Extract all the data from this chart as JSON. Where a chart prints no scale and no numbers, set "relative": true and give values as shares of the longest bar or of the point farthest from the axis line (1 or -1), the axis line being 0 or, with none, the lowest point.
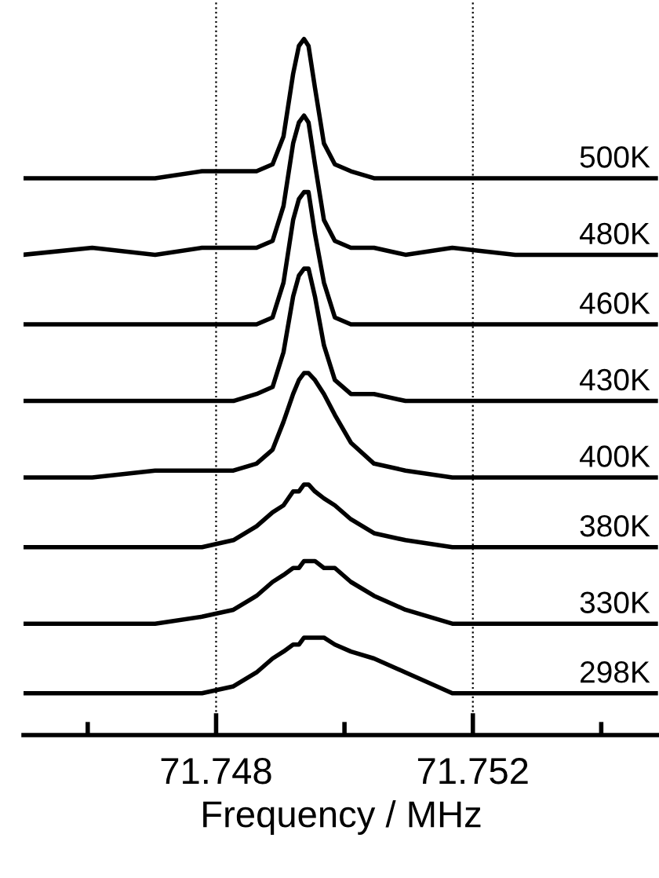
{
  "chart_data": {
    "type": "line",
    "relative": true,
    "xlabel": "Frequency / MHz",
    "x": [
      71.745,
      71.74607,
      71.74705,
      71.74778,
      71.74827,
      71.74863,
      71.74888,
      71.74905,
      71.7492,
      71.74929,
      71.74937,
      71.74944,
      71.74954,
      71.74968,
      71.74985,
      71.7501,
      71.75046,
      71.75095,
      71.75168,
      71.75266,
      71.75388,
      71.75485
    ],
    "xlim": [
      71.745,
      71.7549
    ],
    "xticks": [
      {
        "value": 71.746,
        "label": null
      },
      71.748,
      {
        "value": 71.75,
        "label": null
      },
      71.752,
      {
        "value": 71.754,
        "label": null
      }
    ],
    "tick_labels": "x",
    "grid": false,
    "legend": false,
    "marker": "none",
    "line_style": "solid",
    "ref_lines": [
      {
        "axis": "x",
        "value": 71.748,
        "color": "#000000",
        "line_style": "dotted"
      },
      {
        "axis": "x",
        "value": 71.752,
        "color": "#000000",
        "line_style": "dotted"
      }
    ],
    "series": [
      {
        "name": "500K",
        "color": "#000000",
        "values": [
          0.8,
          0.8,
          0.8,
          0.81,
          0.81,
          0.81,
          0.82,
          0.86,
          0.95,
          0.99,
          1.0,
          0.99,
          0.93,
          0.85,
          0.82,
          0.81,
          0.8,
          0.8,
          0.8,
          0.8,
          0.8,
          0.8
        ]
      },
      {
        "name": "480K",
        "color": "#000000",
        "values": [
          0.69,
          0.7,
          0.69,
          0.7,
          0.7,
          0.7,
          0.71,
          0.76,
          0.85,
          0.88,
          0.89,
          0.88,
          0.82,
          0.74,
          0.71,
          0.7,
          0.7,
          0.69,
          0.7,
          0.69,
          0.69,
          0.69
        ]
      },
      {
        "name": "460K",
        "color": "#000000",
        "values": [
          0.59,
          0.59,
          0.59,
          0.59,
          0.59,
          0.59,
          0.6,
          0.65,
          0.74,
          0.77,
          0.78,
          0.78,
          0.72,
          0.65,
          0.6,
          0.59,
          0.59,
          0.59,
          0.59,
          0.59,
          0.59,
          0.59
        ]
      },
      {
        "name": "430K",
        "color": "#000000",
        "values": [
          0.48,
          0.48,
          0.48,
          0.48,
          0.48,
          0.49,
          0.5,
          0.55,
          0.63,
          0.66,
          0.67,
          0.67,
          0.63,
          0.56,
          0.51,
          0.49,
          0.49,
          0.48,
          0.48,
          0.48,
          0.48,
          0.48
        ]
      },
      {
        "name": "400K",
        "color": "#000000",
        "values": [
          0.37,
          0.37,
          0.38,
          0.38,
          0.38,
          0.39,
          0.41,
          0.45,
          0.49,
          0.51,
          0.52,
          0.52,
          0.51,
          0.49,
          0.46,
          0.42,
          0.39,
          0.38,
          0.37,
          0.37,
          0.37,
          0.37
        ]
      },
      {
        "name": "380K",
        "color": "#000000",
        "values": [
          0.27,
          0.27,
          0.27,
          0.27,
          0.28,
          0.3,
          0.32,
          0.33,
          0.35,
          0.35,
          0.36,
          0.36,
          0.35,
          0.34,
          0.33,
          0.31,
          0.29,
          0.28,
          0.27,
          0.27,
          0.27,
          0.27
        ]
      },
      {
        "name": "330K",
        "color": "#000000",
        "values": [
          0.16,
          0.16,
          0.16,
          0.17,
          0.18,
          0.2,
          0.22,
          0.23,
          0.24,
          0.24,
          0.25,
          0.25,
          0.25,
          0.24,
          0.24,
          0.22,
          0.2,
          0.18,
          0.16,
          0.16,
          0.16,
          0.16
        ]
      },
      {
        "name": "298K",
        "color": "#000000",
        "values": [
          0.06,
          0.06,
          0.06,
          0.06,
          0.07,
          0.09,
          0.11,
          0.12,
          0.13,
          0.13,
          0.14,
          0.14,
          0.14,
          0.14,
          0.13,
          0.12,
          0.11,
          0.09,
          0.06,
          0.06,
          0.06,
          0.06
        ]
      }
    ]
  }
}
